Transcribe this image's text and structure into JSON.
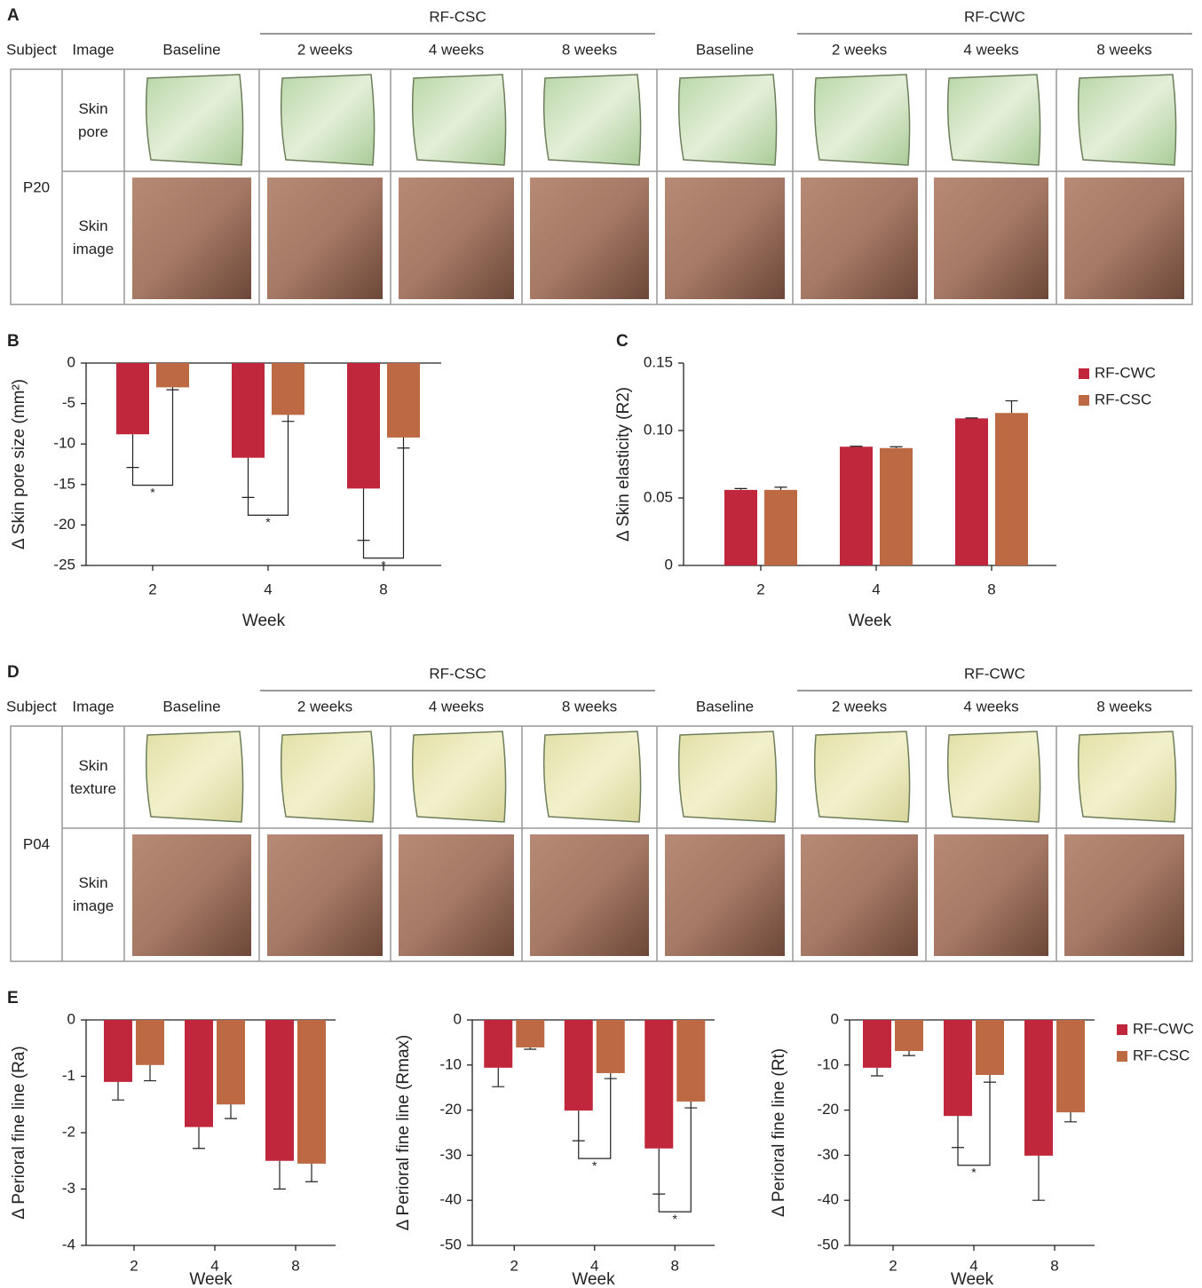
{
  "panel_a": {
    "label": "A",
    "groups": [
      "RF-CSC",
      "RF-CWC"
    ],
    "columns": [
      "Subject",
      "Image",
      "Baseline",
      "2 weeks",
      "4 weeks",
      "8 weeks",
      "Baseline",
      "2 weeks",
      "4 weeks",
      "8 weeks"
    ],
    "subject": "P20",
    "rows": [
      "Skin pore",
      "Skin image"
    ]
  },
  "panel_d": {
    "label": "D",
    "groups": [
      "RF-CSC",
      "RF-CWC"
    ],
    "columns": [
      "Subject",
      "Image",
      "Baseline",
      "2 weeks",
      "4 weeks",
      "8 weeks",
      "Baseline",
      "2 weeks",
      "4 weeks",
      "8 weeks"
    ],
    "subject": "P04",
    "rows": [
      "Skin texture",
      "Skin image"
    ]
  },
  "chart_data": [
    {
      "type": "bar",
      "panel": "B",
      "x_label": "Week",
      "y_label": "Δ Skin pore size (mm²)",
      "categories": [
        "2",
        "4",
        "8"
      ],
      "ylim": [
        -25,
        0
      ],
      "yticks": [
        0,
        -5,
        -10,
        -15,
        -20,
        -25
      ],
      "series": [
        {
          "color": "#c0263c",
          "values": [
            -8.8,
            -11.7,
            -15.5
          ],
          "errors": [
            4.1,
            4.9,
            6.4
          ]
        },
        {
          "color": "#bd6a44",
          "values": [
            -3.0,
            -6.4,
            -9.2
          ],
          "errors": [
            0.3,
            0.8,
            1.3
          ]
        }
      ],
      "significance": [
        {
          "category": "2",
          "label": "*"
        },
        {
          "category": "4",
          "label": "*"
        },
        {
          "category": "8",
          "label": "*"
        }
      ]
    },
    {
      "type": "bar",
      "panel": "C",
      "x_label": "Week",
      "y_label": "Δ Skin elasticity (R2)",
      "categories": [
        "2",
        "4",
        "8"
      ],
      "ylim": [
        0,
        0.15
      ],
      "yticks": [
        0,
        0.05,
        {
          "value": 0.1,
          "label": "0.10"
        },
        0.15
      ],
      "legend": "right",
      "series": [
        {
          "name": "RF-CWC",
          "color": "#c0263c",
          "values": [
            0.056,
            0.088,
            0.109
          ],
          "errors": [
            0.001,
            0.0003,
            0.0003
          ]
        },
        {
          "name": "RF-CSC",
          "color": "#bd6a44",
          "values": [
            0.056,
            0.087,
            0.113
          ],
          "errors": [
            0.002,
            0.001,
            0.009
          ]
        }
      ]
    },
    {
      "type": "bar",
      "panel": "E",
      "x_label": "Week",
      "y_label": "Δ Perioral fine line (Ra)",
      "categories": [
        "2",
        "4",
        "8"
      ],
      "ylim": [
        -4,
        0
      ],
      "yticks": [
        0,
        -1,
        -2,
        -3,
        -4
      ],
      "series": [
        {
          "color": "#c0263c",
          "values": [
            -1.1,
            -1.9,
            -2.5
          ],
          "errors": [
            0.32,
            0.38,
            0.5
          ]
        },
        {
          "color": "#bd6a44",
          "values": [
            -0.8,
            -1.5,
            -2.55
          ],
          "errors": [
            0.28,
            0.25,
            0.32
          ]
        }
      ]
    },
    {
      "type": "bar",
      "x_label": "Week",
      "y_label": "Δ Perioral fine line (Rmax)",
      "categories": [
        "2",
        "4",
        "8"
      ],
      "ylim": [
        -50,
        0
      ],
      "yticks": [
        0,
        -10,
        -20,
        -30,
        -40,
        -50
      ],
      "series": [
        {
          "color": "#c0263c",
          "values": [
            -10.6,
            -20.1,
            -28.5
          ],
          "errors": [
            4.2,
            6.7,
            10.1
          ]
        },
        {
          "color": "#bd6a44",
          "values": [
            -6.1,
            -11.8,
            -18.1
          ],
          "errors": [
            0.4,
            1.2,
            1.4
          ]
        }
      ],
      "significance": [
        {
          "category": "4",
          "label": "*"
        },
        {
          "category": "8",
          "label": "*"
        }
      ]
    },
    {
      "type": "bar",
      "x_label": "Week",
      "y_label": "Δ Perioral fine line (Rt)",
      "categories": [
        "2",
        "4",
        "8"
      ],
      "ylim": [
        -50,
        0
      ],
      "yticks": [
        0,
        -10,
        -20,
        -30,
        -40,
        -50
      ],
      "legend": "right",
      "series": [
        {
          "name": "RF-CWC",
          "color": "#c0263c",
          "values": [
            -10.6,
            -21.3,
            -30.1
          ],
          "errors": [
            1.8,
            7.0,
            9.9
          ]
        },
        {
          "name": "RF-CSC",
          "color": "#bd6a44",
          "values": [
            -6.9,
            -12.2,
            -20.5
          ],
          "errors": [
            1.0,
            1.6,
            2.1
          ]
        }
      ],
      "significance": [
        {
          "category": "4",
          "label": "*"
        }
      ]
    }
  ]
}
